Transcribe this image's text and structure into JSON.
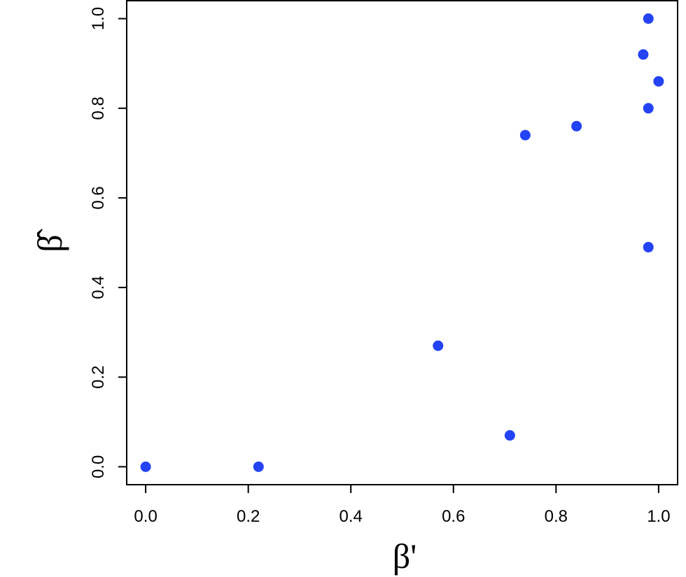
{
  "chart_data": {
    "type": "scatter",
    "title": "",
    "xlabel": "β'",
    "ylabel": "β̂",
    "xlim": [
      -0.037,
      1.037
    ],
    "ylim": [
      -0.04,
      1.04
    ],
    "x_ticks": [
      0.0,
      0.2,
      0.4,
      0.6,
      0.8,
      1.0
    ],
    "x_tick_labels": [
      "0.0",
      "0.2",
      "0.4",
      "0.6",
      "0.8",
      "1.0"
    ],
    "y_ticks": [
      0.0,
      0.2,
      0.4,
      0.6,
      0.8,
      1.0
    ],
    "y_tick_labels": [
      "0.0",
      "0.2",
      "0.4",
      "0.6",
      "0.8",
      "1.0"
    ],
    "grid": false,
    "point_color": "#2343f5",
    "points": [
      {
        "x": 0.0,
        "y": 0.0
      },
      {
        "x": 0.22,
        "y": 0.0
      },
      {
        "x": 0.57,
        "y": 0.27
      },
      {
        "x": 0.71,
        "y": 0.07
      },
      {
        "x": 0.74,
        "y": 0.74
      },
      {
        "x": 0.84,
        "y": 0.76
      },
      {
        "x": 0.97,
        "y": 0.92
      },
      {
        "x": 0.98,
        "y": 1.0
      },
      {
        "x": 0.98,
        "y": 0.8
      },
      {
        "x": 0.98,
        "y": 0.49
      },
      {
        "x": 1.0,
        "y": 0.86
      }
    ]
  }
}
